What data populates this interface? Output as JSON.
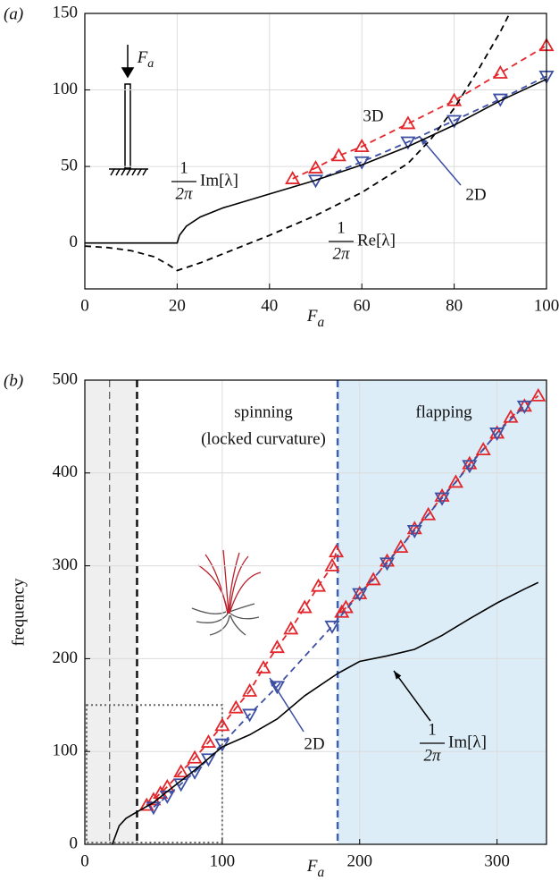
{
  "chart_data": [
    {
      "type": "line",
      "panel_label": "(a)",
      "xlabel": {
        "main": "F",
        "sub": "a"
      },
      "inset_label": {
        "main": "F",
        "sub": "a"
      },
      "xlim": [
        0,
        100
      ],
      "ylim": [
        -30,
        150
      ],
      "xticks": [
        0,
        20,
        40,
        60,
        80,
        100
      ],
      "yticks": [
        0,
        50,
        100,
        150
      ],
      "grid": true,
      "series": [
        {
          "name": "3D",
          "color": "#e3262b",
          "marker": "up",
          "dashed": true,
          "x": [
            45,
            50,
            55,
            60,
            70,
            80,
            90,
            100
          ],
          "values": [
            42,
            49,
            57,
            63,
            78,
            93,
            111,
            129
          ]
        },
        {
          "name": "2D",
          "color": "#3d4fa3",
          "marker": "down",
          "dashed": true,
          "x": [
            50,
            60,
            70,
            80,
            90,
            100
          ],
          "values": [
            41,
            53,
            66,
            80,
            94,
            109
          ]
        },
        {
          "color": "#000000",
          "dashed": false,
          "x": [
            0,
            20,
            20.5,
            22,
            25,
            30,
            40,
            50,
            60,
            70,
            80,
            90,
            100
          ],
          "values": [
            0,
            0,
            5,
            11,
            17,
            23,
            32,
            41,
            51,
            63,
            77,
            93,
            107
          ]
        },
        {
          "color": "#000000",
          "dashed": true,
          "x": [
            0,
            5,
            10,
            15,
            18,
            20,
            22,
            25,
            30,
            40,
            50,
            60,
            70,
            75,
            80,
            85,
            90,
            92
          ],
          "values": [
            -2,
            -3,
            -5,
            -9,
            -14,
            -18,
            -16,
            -13,
            -7,
            5,
            18,
            33,
            52,
            68,
            88,
            112,
            138,
            150
          ]
        }
      ],
      "annotations": [
        {
          "numerator": "1",
          "denominator": "2π",
          "text": "Im[λ]"
        },
        {
          "numerator": "1",
          "denominator": "2π",
          "text": "Re[λ]"
        }
      ]
    },
    {
      "type": "line",
      "panel_label": "(b)",
      "xlabel": {
        "main": "F",
        "sub": "a"
      },
      "ylabel": "frequency",
      "xlim": [
        0,
        336
      ],
      "ylim": [
        0,
        500
      ],
      "xticks": [
        0,
        100,
        200,
        300
      ],
      "yticks": [
        0,
        100,
        200,
        300,
        400,
        500
      ],
      "grid": true,
      "regions": [
        {
          "x": [
            0,
            38
          ],
          "color": "#efefef"
        },
        {
          "x": [
            184,
            336
          ],
          "color": "#dcedf8"
        }
      ],
      "vlines": [
        {
          "x": 18,
          "color": "#555555",
          "width": 1.2
        },
        {
          "x": 38,
          "color": "#111111",
          "width": 2.5
        },
        {
          "x": 184,
          "color": "#3d5fb5",
          "width": 2.5
        }
      ],
      "dotted_box": {
        "x": [
          0,
          100
        ],
        "y": [
          0,
          150
        ]
      },
      "series": [
        {
          "color": "#e3262b",
          "marker": "up",
          "dashed": true,
          "x": [
            45,
            50,
            55,
            60,
            70,
            80,
            90,
            100,
            110,
            120,
            130,
            140,
            150,
            160,
            170,
            180,
            183,
            null,
            187,
            190,
            200,
            210,
            220,
            230,
            240,
            250,
            260,
            270,
            280,
            290,
            300,
            310,
            320,
            330
          ],
          "values": [
            42,
            48,
            55,
            62,
            78,
            93,
            110,
            128,
            147,
            165,
            190,
            212,
            232,
            255,
            278,
            300,
            315,
            null,
            250,
            255,
            270,
            285,
            305,
            320,
            340,
            355,
            375,
            390,
            410,
            425,
            443,
            460,
            472,
            483
          ]
        },
        {
          "name": "2D",
          "color": "#3d4fa3",
          "marker": "down",
          "dashed": true,
          "x": [
            50,
            60,
            70,
            80,
            90,
            100,
            120,
            140,
            180,
            200,
            220,
            240,
            260,
            280,
            300,
            320
          ],
          "values": [
            40,
            52,
            65,
            78,
            92,
            108,
            140,
            170,
            235,
            270,
            303,
            338,
            373,
            408,
            443,
            472
          ]
        },
        {
          "color": "#000000",
          "dashed": false,
          "x": [
            20,
            25,
            30,
            38,
            50,
            60,
            80,
            100,
            120,
            140,
            160,
            184,
            200,
            220,
            240,
            260,
            280,
            300,
            320,
            330
          ],
          "values": [
            0,
            20,
            28,
            35,
            45,
            57,
            80,
            105,
            118,
            135,
            160,
            184,
            197,
            203,
            210,
            225,
            243,
            260,
            275,
            282
          ]
        }
      ],
      "annotations": [
        {
          "text": "spinning"
        },
        {
          "text": "(locked curvature)"
        },
        {
          "text": "flapping"
        },
        {
          "numerator": "1",
          "denominator": "2π",
          "text": "Im[λ]"
        }
      ]
    }
  ]
}
